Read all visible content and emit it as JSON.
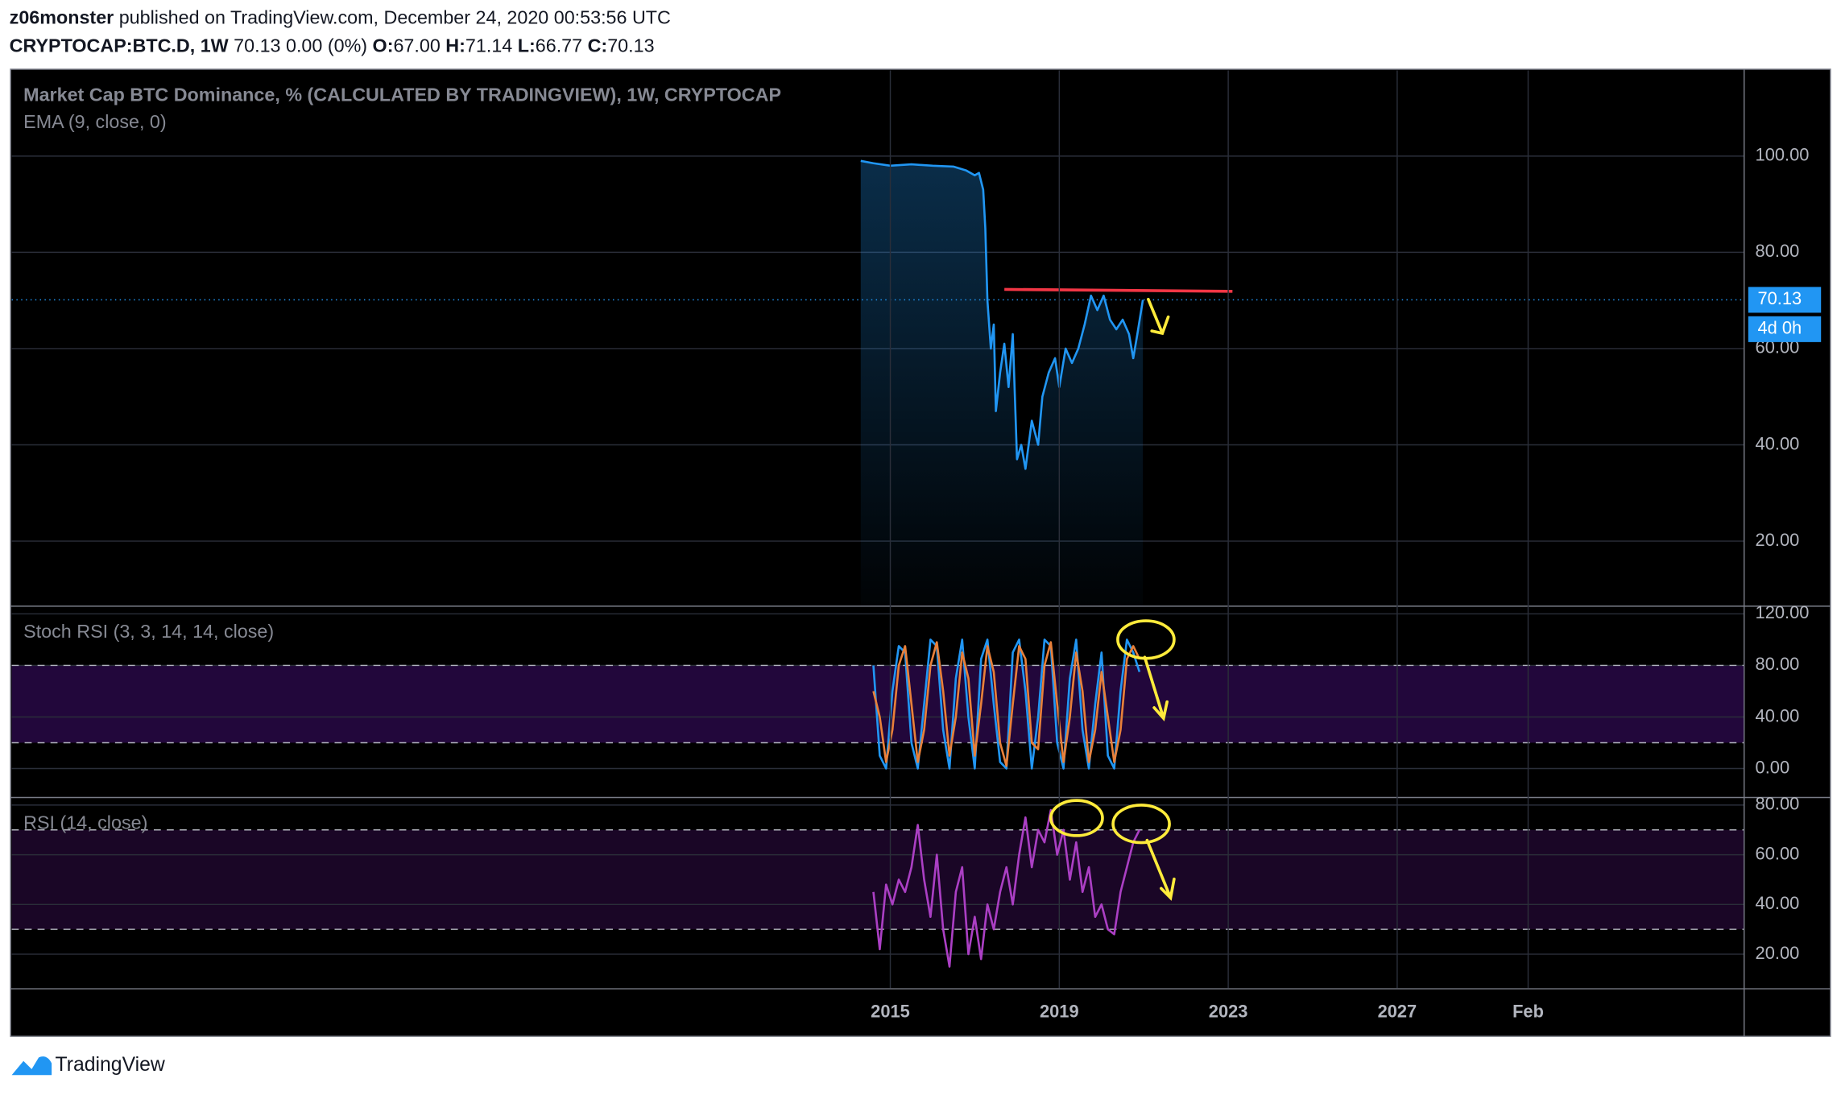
{
  "header": {
    "author": "z06monster",
    "published": "published on TradingView.com, December 24, 2020 00:53:56 UTC",
    "symbol": "CRYPTOCAP:BTC.D, 1W",
    "change": "70.13 0.00 (0%)",
    "ohlc": [
      {
        "label": "O:",
        "value": "67.00"
      },
      {
        "label": "H:",
        "value": "71.14"
      },
      {
        "label": "L:",
        "value": "66.77"
      },
      {
        "label": "C:",
        "value": "70.13"
      }
    ]
  },
  "footer": {
    "brand": "TradingView"
  },
  "chart_data": [
    {
      "type": "line",
      "title": "Market Cap BTC Dominance, % (CALCULATED BY TRADINGVIEW), 1W, CRYPTOCAP",
      "subtitle": "EMA (9, close, 0)",
      "x": [
        2014.3,
        2014.6,
        2015,
        2015.5,
        2016,
        2016.5,
        2016.8,
        2017,
        2017.1,
        2017.2,
        2017.25,
        2017.3,
        2017.38,
        2017.45,
        2017.5,
        2017.6,
        2017.7,
        2017.8,
        2017.9,
        2018,
        2018.1,
        2018.2,
        2018.35,
        2018.5,
        2018.6,
        2018.75,
        2018.9,
        2019,
        2019.15,
        2019.3,
        2019.45,
        2019.6,
        2019.75,
        2019.9,
        2020.05,
        2020.2,
        2020.35,
        2020.5,
        2020.65,
        2020.75,
        2020.85,
        2020.98
      ],
      "values": [
        99,
        98.5,
        98,
        98.3,
        98,
        97.8,
        97,
        96,
        96.5,
        93,
        85,
        70,
        60,
        65,
        47,
        55,
        61,
        52,
        63,
        37,
        40,
        35,
        45,
        40,
        50,
        55,
        58,
        52,
        60,
        57,
        60,
        65,
        71,
        68,
        71,
        66,
        64,
        66,
        63,
        58,
        63,
        70.13
      ],
      "color": "#2196f3",
      "area": true,
      "xlim": [
        1994.2,
        2035.2
      ],
      "ylim": [
        6.6,
        117.8
      ],
      "yticks": [
        {
          "value": 20,
          "label": "20.00"
        },
        {
          "value": 40,
          "label": "40.00"
        },
        {
          "value": 60,
          "label": "60.00"
        },
        {
          "value": 80,
          "label": "80.00"
        },
        {
          "value": 100,
          "label": "100.00"
        }
      ],
      "last_value": 70.13,
      "countdown": "4d 0h",
      "trendline": {
        "x": [
          2017.7,
          2023.1
        ],
        "values": [
          72.3,
          71.9
        ],
        "color": "#f23645"
      }
    },
    {
      "type": "line",
      "title": "Stoch RSI (3, 3, 14, 14, close)",
      "x": [
        2014.6,
        2014.75,
        2014.9,
        2015.05,
        2015.2,
        2015.35,
        2015.5,
        2015.65,
        2015.8,
        2015.95,
        2016.1,
        2016.25,
        2016.4,
        2016.55,
        2016.7,
        2016.85,
        2017,
        2017.15,
        2017.3,
        2017.45,
        2017.6,
        2017.75,
        2017.9,
        2018.05,
        2018.2,
        2018.35,
        2018.5,
        2018.65,
        2018.8,
        2018.95,
        2019.1,
        2019.25,
        2019.4,
        2019.55,
        2019.7,
        2019.85,
        2020,
        2020.15,
        2020.3,
        2020.45,
        2020.6,
        2020.75,
        2020.9
      ],
      "series": [
        {
          "color": "#2196f3",
          "values": [
            80,
            10,
            0,
            60,
            95,
            90,
            20,
            0,
            50,
            100,
            95,
            30,
            0,
            70,
            100,
            40,
            0,
            85,
            100,
            50,
            5,
            0,
            90,
            100,
            60,
            0,
            40,
            100,
            95,
            20,
            0,
            70,
            100,
            30,
            0,
            50,
            90,
            10,
            0,
            60,
            100,
            90,
            75
          ]
        },
        {
          "color": "#e8803a",
          "values": [
            60,
            40,
            5,
            30,
            80,
            95,
            50,
            5,
            30,
            80,
            98,
            60,
            10,
            40,
            90,
            70,
            10,
            50,
            95,
            75,
            20,
            2,
            50,
            95,
            85,
            20,
            15,
            80,
            98,
            50,
            5,
            40,
            90,
            60,
            5,
            30,
            75,
            40,
            5,
            30,
            85,
            95,
            85
          ]
        }
      ],
      "xlim": [
        1994.2,
        2035.2
      ],
      "ylim": [
        -22,
        125.5
      ],
      "yticks": [
        {
          "value": 0,
          "label": "0.00"
        },
        {
          "value": 40,
          "label": "40.00"
        },
        {
          "value": 80,
          "label": "80.00"
        },
        {
          "value": 120,
          "label": "120.00"
        }
      ],
      "bands": [
        20,
        80
      ],
      "band_color": "#22073b"
    },
    {
      "type": "line",
      "title": "RSI (14, close)",
      "x": [
        2014.6,
        2014.75,
        2014.9,
        2015.05,
        2015.2,
        2015.35,
        2015.5,
        2015.65,
        2015.8,
        2015.95,
        2016.1,
        2016.25,
        2016.4,
        2016.55,
        2016.7,
        2016.85,
        2017,
        2017.15,
        2017.3,
        2017.45,
        2017.6,
        2017.75,
        2017.9,
        2018.05,
        2018.2,
        2018.35,
        2018.5,
        2018.65,
        2018.8,
        2018.95,
        2019.1,
        2019.25,
        2019.4,
        2019.55,
        2019.7,
        2019.85,
        2020,
        2020.15,
        2020.3,
        2020.45,
        2020.6,
        2020.75,
        2020.9
      ],
      "values": [
        45,
        22,
        48,
        40,
        50,
        45,
        55,
        72,
        50,
        35,
        60,
        30,
        15,
        45,
        55,
        20,
        35,
        18,
        40,
        30,
        45,
        55,
        40,
        60,
        75,
        55,
        70,
        65,
        78,
        60,
        70,
        50,
        65,
        45,
        55,
        35,
        40,
        30,
        28,
        45,
        55,
        65,
        70
      ],
      "color": "#ab3fc4",
      "xlim": [
        1994.2,
        2035.2
      ],
      "ylim": [
        6.3,
        82.8
      ],
      "yticks": [
        {
          "value": 20,
          "label": "20.00"
        },
        {
          "value": 40,
          "label": "40.00"
        },
        {
          "value": 60,
          "label": "60.00"
        },
        {
          "value": 80,
          "label": "80.00"
        }
      ],
      "xticks": [
        2015,
        2019,
        2023,
        2027,
        {
          "value": 2030.1,
          "label": "Feb"
        }
      ],
      "bands": [
        30,
        70
      ],
      "band_color": "#1a0626"
    }
  ]
}
